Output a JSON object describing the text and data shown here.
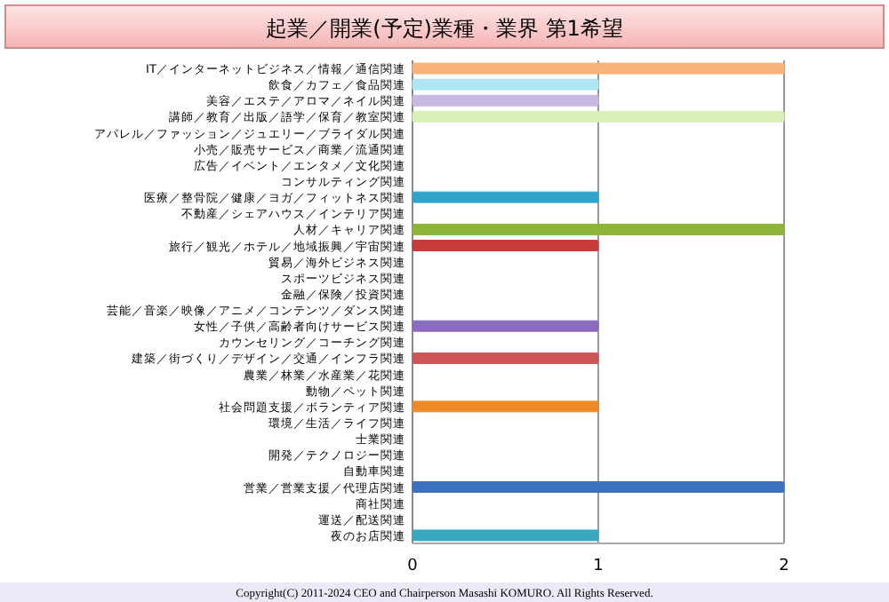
{
  "chart_data": {
    "type": "bar",
    "orientation": "horizontal",
    "title": "起業／開業(予定)業種・業界 第1希望",
    "categories": [
      "IT／インターネットビジネス／情報／通信関連",
      "飲食／カフェ／食品関連",
      "美容／エステ／アロマ／ネイル関連",
      "講師／教育／出版／語学／保育／教室関連",
      "アパレル／ファッション／ジュエリー／ブライダル関連",
      "小売／販売サービス／商業／流通関連",
      "広告／イベント／エンタメ／文化関連",
      "コンサルティング関連",
      "医療／整骨院／健康／ヨガ／フィットネス関連",
      "不動産／シェアハウス／インテリア関連",
      "人材／キャリア関連",
      "旅行／観光／ホテル／地域振興／宇宙関連",
      "貿易／海外ビジネス関連",
      "スポーツビジネス関連",
      "金融／保険／投資関連",
      "芸能／音楽／映像／アニメ／コンテンツ／ダンス関連",
      "女性／子供／高齢者向けサービス関連",
      "カウンセリング／コーチング関連",
      "建築／街づくり／デザイン／交通／インフラ関連",
      "農業／林業／水産業／花関連",
      "動物／ペット関連",
      "社会問題支援／ボランティア関連",
      "環境／生活／ライフ関連",
      "士業関連",
      "開発／テクノロジー関連",
      "自動車関連",
      "営業／営業支援／代理店関連",
      "商社関連",
      "運送／配送関連",
      "夜のお店関連"
    ],
    "values": [
      2,
      1,
      1,
      2,
      0,
      0,
      0,
      0,
      1,
      0,
      2,
      1,
      0,
      0,
      0,
      0,
      1,
      0,
      1,
      0,
      0,
      1,
      0,
      0,
      0,
      0,
      2,
      0,
      0,
      1
    ],
    "colors": [
      "#f8b27a",
      "#aee6f5",
      "#c9b8e0",
      "#d8f0b8",
      "#d66b6b",
      "#6d8fc9",
      "#404040",
      "#e08a30",
      "#2fa3c9",
      "#7b5ea8",
      "#8db33a",
      "#c93a3a",
      "#3a6fb8",
      "#303030",
      "#f39a45",
      "#45b3d0",
      "#8a6bbf",
      "#9cc35a",
      "#cc5555",
      "#4a7fc1",
      "#303030",
      "#f08a25",
      "#3fb0c8",
      "#7b5ea8",
      "#9cc35a",
      "#c94040",
      "#3a72c0",
      "#303030",
      "#c87a3a",
      "#3aa8c0"
    ],
    "xlim": [
      0,
      2
    ],
    "xticks": [
      0,
      1,
      2
    ],
    "grid": "x",
    "annotations": [
      "Copyright(C) 2011-2024 CEO and Chairperson Masashi KOMURO. All Rights Reserved."
    ]
  }
}
